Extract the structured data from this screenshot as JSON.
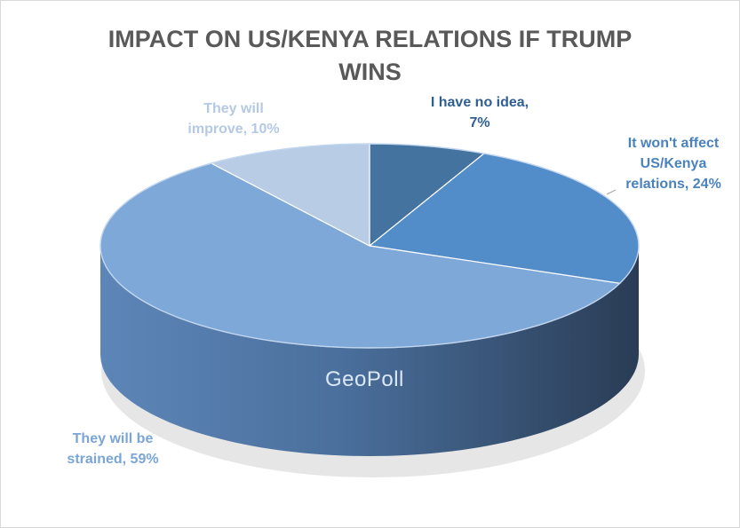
{
  "chart_data": {
    "type": "pie",
    "title_lines": [
      "IMPACT ON US/KENYA RELATIONS IF TRUMP",
      "WINS"
    ],
    "slices": [
      {
        "label_lines": [
          "I have no idea,",
          "7%"
        ],
        "value": 7,
        "color": "#44739f"
      },
      {
        "label_lines": [
          "It won't affect",
          "US/Kenya",
          "relations, 24%"
        ],
        "value": 24,
        "color": "#538dc9"
      },
      {
        "label_lines": [
          "They will be",
          "strained, 59%"
        ],
        "value": 59,
        "color": "#7ea8d7"
      },
      {
        "label_lines": [
          "They will",
          "improve, 10%"
        ],
        "value": 10,
        "color": "#b8cce6"
      }
    ],
    "label_colors": [
      "#2f5f92",
      "#4a82bd",
      "#7aa5d6",
      "#b4c9e4"
    ]
  },
  "watermark": "GeoPoll"
}
